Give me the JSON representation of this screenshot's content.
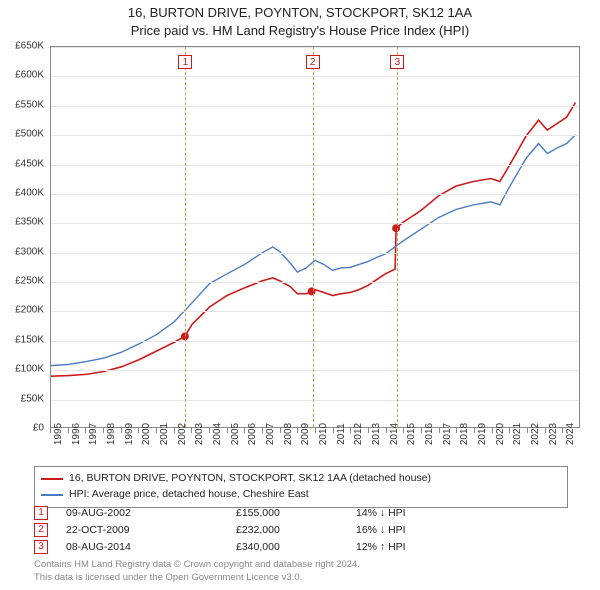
{
  "title_line1": "16, BURTON DRIVE, POYNTON, STOCKPORT, SK12 1AA",
  "title_line2": "Price paid vs. HM Land Registry's House Price Index (HPI)",
  "chart": {
    "type": "line",
    "background_color": "#ffffff",
    "grid_color": "#e6e6e6",
    "axis_color": "#888888",
    "y": {
      "min": 0,
      "max": 650000,
      "tick_step": 50000,
      "labels": [
        "£0",
        "£50K",
        "£100K",
        "£150K",
        "£200K",
        "£250K",
        "£300K",
        "£350K",
        "£400K",
        "£450K",
        "£500K",
        "£550K",
        "£600K",
        "£650K"
      ]
    },
    "x": {
      "min": 1995,
      "max": 2025,
      "labels": [
        "1995",
        "1996",
        "1997",
        "1998",
        "1999",
        "2000",
        "2001",
        "2002",
        "2003",
        "2004",
        "2005",
        "2006",
        "2007",
        "2008",
        "2009",
        "2010",
        "2011",
        "2012",
        "2013",
        "2014",
        "2015",
        "2016",
        "2017",
        "2018",
        "2019",
        "2020",
        "2021",
        "2022",
        "2023",
        "2024"
      ]
    },
    "series": [
      {
        "name": "price_paid",
        "color": "#cc1b1b",
        "line_width": 1.6,
        "points": [
          [
            1995.0,
            87000
          ],
          [
            1996.0,
            88000
          ],
          [
            1997.0,
            90000
          ],
          [
            1998.0,
            95000
          ],
          [
            1999.0,
            103000
          ],
          [
            2000.0,
            115000
          ],
          [
            2001.0,
            130000
          ],
          [
            2002.0,
            145000
          ],
          [
            2002.61,
            155000
          ],
          [
            2003.0,
            175000
          ],
          [
            2004.0,
            205000
          ],
          [
            2005.0,
            225000
          ],
          [
            2006.0,
            238000
          ],
          [
            2007.0,
            250000
          ],
          [
            2007.6,
            255000
          ],
          [
            2008.0,
            250000
          ],
          [
            2008.6,
            240000
          ],
          [
            2009.0,
            228000
          ],
          [
            2009.5,
            228000
          ],
          [
            2009.81,
            232000
          ],
          [
            2010.0,
            235000
          ],
          [
            2010.5,
            230000
          ],
          [
            2011.0,
            225000
          ],
          [
            2011.5,
            228000
          ],
          [
            2012.0,
            230000
          ],
          [
            2012.5,
            235000
          ],
          [
            2013.0,
            242000
          ],
          [
            2013.5,
            252000
          ],
          [
            2014.0,
            262000
          ],
          [
            2014.55,
            270000
          ],
          [
            2014.61,
            340000
          ],
          [
            2015.0,
            350000
          ],
          [
            2016.0,
            370000
          ],
          [
            2017.0,
            395000
          ],
          [
            2018.0,
            412000
          ],
          [
            2019.0,
            420000
          ],
          [
            2020.0,
            425000
          ],
          [
            2020.5,
            420000
          ],
          [
            2021.0,
            445000
          ],
          [
            2022.0,
            498000
          ],
          [
            2022.7,
            525000
          ],
          [
            2023.2,
            508000
          ],
          [
            2023.8,
            520000
          ],
          [
            2024.3,
            530000
          ],
          [
            2024.8,
            555000
          ]
        ]
      },
      {
        "name": "hpi",
        "color": "#4a7bc4",
        "line_width": 1.4,
        "points": [
          [
            1995.0,
            105000
          ],
          [
            1996.0,
            107000
          ],
          [
            1997.0,
            112000
          ],
          [
            1998.0,
            118000
          ],
          [
            1999.0,
            128000
          ],
          [
            2000.0,
            142000
          ],
          [
            2001.0,
            158000
          ],
          [
            2002.0,
            180000
          ],
          [
            2003.0,
            212000
          ],
          [
            2004.0,
            245000
          ],
          [
            2005.0,
            262000
          ],
          [
            2006.0,
            278000
          ],
          [
            2007.0,
            298000
          ],
          [
            2007.6,
            308000
          ],
          [
            2008.0,
            300000
          ],
          [
            2008.6,
            280000
          ],
          [
            2009.0,
            265000
          ],
          [
            2009.5,
            272000
          ],
          [
            2010.0,
            285000
          ],
          [
            2010.5,
            278000
          ],
          [
            2011.0,
            268000
          ],
          [
            2011.5,
            272000
          ],
          [
            2012.0,
            273000
          ],
          [
            2012.5,
            278000
          ],
          [
            2013.0,
            283000
          ],
          [
            2013.5,
            290000
          ],
          [
            2014.0,
            296000
          ],
          [
            2015.0,
            318000
          ],
          [
            2016.0,
            338000
          ],
          [
            2017.0,
            358000
          ],
          [
            2018.0,
            372000
          ],
          [
            2019.0,
            380000
          ],
          [
            2020.0,
            385000
          ],
          [
            2020.5,
            380000
          ],
          [
            2021.0,
            408000
          ],
          [
            2022.0,
            460000
          ],
          [
            2022.7,
            485000
          ],
          [
            2023.2,
            468000
          ],
          [
            2023.8,
            478000
          ],
          [
            2024.3,
            485000
          ],
          [
            2024.8,
            500000
          ]
        ]
      }
    ],
    "markers": [
      {
        "x": 2002.61,
        "y": 155000,
        "color": "#cc1b1b"
      },
      {
        "x": 2009.81,
        "y": 232000,
        "color": "#cc1b1b"
      },
      {
        "x": 2014.61,
        "y": 340000,
        "color": "#cc1b1b"
      }
    ],
    "event_lines": {
      "color": "#c9a050",
      "positions": [
        2002.61,
        2009.81,
        2014.61
      ],
      "box_labels": [
        "1",
        "2",
        "3"
      ]
    }
  },
  "legend": {
    "items": [
      {
        "color": "#cc1b1b",
        "label": "16, BURTON DRIVE, POYNTON, STOCKPORT, SK12 1AA (detached house)"
      },
      {
        "color": "#4a7bc4",
        "label": "HPI: Average price, detached house, Cheshire East"
      }
    ]
  },
  "events": [
    {
      "n": "1",
      "date": "09-AUG-2002",
      "price": "£155,000",
      "pct": "14% ↓ HPI"
    },
    {
      "n": "2",
      "date": "22-OCT-2009",
      "price": "£232,000",
      "pct": "16% ↓ HPI"
    },
    {
      "n": "3",
      "date": "08-AUG-2014",
      "price": "£340,000",
      "pct": "12% ↑ HPI"
    }
  ],
  "footer_line1": "Contains HM Land Registry data © Crown copyright and database right 2024.",
  "footer_line2": "This data is licensed under the Open Government Licence v3.0."
}
